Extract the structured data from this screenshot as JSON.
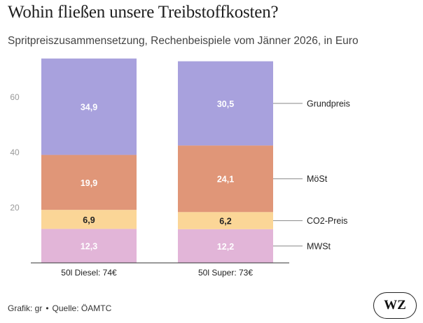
{
  "header": {
    "title": "Wohin fließen unsere Treibstoffkosten?",
    "subtitle": "Spritpreiszusammensetzung, Rechenbeispiele vom Jänner 2026, in Euro"
  },
  "footer": {
    "grafik": "Grafik: gr",
    "separator": "•",
    "quelle": "Quelle: ÖAMTC"
  },
  "logo": {
    "text": "WZ"
  },
  "chart_data": {
    "type": "bar",
    "stacked": true,
    "categories": [
      "50l Diesel: 74€",
      "50l Super: 73€"
    ],
    "series": [
      {
        "name": "MWSt",
        "values": [
          12.3,
          12.2
        ],
        "labels": [
          "12,3",
          "12,2"
        ],
        "color": "#e2b5d8"
      },
      {
        "name": "CO2-Preis",
        "values": [
          6.9,
          6.2
        ],
        "labels": [
          "6,9",
          "6,2"
        ],
        "color": "#fbd697"
      },
      {
        "name": "MöSt",
        "values": [
          19.9,
          24.1
        ],
        "labels": [
          "19,9",
          "24,1"
        ],
        "color": "#e09678"
      },
      {
        "name": "Grundpreis",
        "values": [
          34.9,
          30.5
        ],
        "labels": [
          "34,9",
          "30,5"
        ],
        "color": "#a8a1dd"
      }
    ],
    "yticks": [
      20,
      40,
      60
    ],
    "ylim": [
      0,
      74
    ],
    "grid": false,
    "legend": "right, labels connected to Super bar segments"
  }
}
